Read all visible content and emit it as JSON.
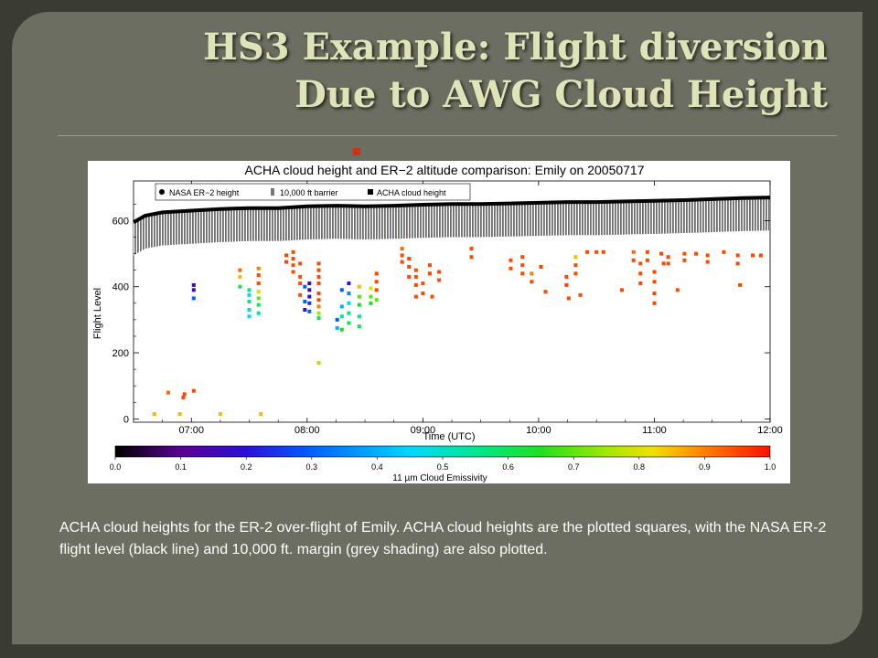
{
  "slide": {
    "title_line1": "HS3 Example: Flight diversion",
    "title_line2": "Due to AWG Cloud Height",
    "caption": "ACHA cloud heights for the ER-2 over-flight of Emily. ACHA cloud heights are the plotted squares, with the NASA ER-2 flight level (black line) and 10,000 ft. margin (grey shading) are also plotted."
  },
  "colors": {
    "background": "#3a3c33",
    "slide": "#6b6e60",
    "title": "#dfe3b8",
    "bullet": "#d23010"
  },
  "chart_data": {
    "type": "scatter",
    "title": "ACHA cloud height and ER−2 altitude comparison: Emily on 20050717",
    "xlabel": "Time (UTC)",
    "ylabel": "Flight Level",
    "xlim": [
      6.5,
      12.0
    ],
    "ylim": [
      -10,
      720
    ],
    "x_ticks": [
      7,
      8,
      9,
      10,
      11,
      12
    ],
    "x_tick_labels": [
      "07:00",
      "08:00",
      "09:00",
      "10:00",
      "11:00",
      "12:00"
    ],
    "y_ticks": [
      0,
      200,
      400,
      600
    ],
    "y_tick_labels": [
      "0",
      "200",
      "400",
      "600"
    ],
    "legend": {
      "placement": "top-left",
      "entries": [
        "NASA ER−2 height",
        "10,000 ft barrier",
        "ACHA cloud height"
      ]
    },
    "colorbar": {
      "label": "11 µm Cloud Emissivity",
      "ticks": [
        0.0,
        0.1,
        0.2,
        0.3,
        0.4,
        0.5,
        0.6,
        0.7,
        0.8,
        0.9,
        1.0
      ],
      "tick_labels": [
        "0.0",
        "0.1",
        "0.2",
        "0.3",
        "0.4",
        "0.5",
        "0.6",
        "0.7",
        "0.8",
        "0.9",
        "1.0"
      ]
    },
    "er2_height": {
      "name": "NASA ER−2 height",
      "x": [
        6.5,
        6.6,
        6.75,
        7.0,
        7.25,
        7.5,
        7.75,
        8.0,
        8.25,
        8.5,
        8.75,
        9.0,
        9.25,
        9.5,
        9.75,
        10.0,
        10.25,
        10.5,
        10.75,
        11.0,
        11.25,
        11.5,
        11.75,
        12.0
      ],
      "y": [
        595,
        615,
        625,
        630,
        635,
        638,
        638,
        643,
        645,
        643,
        645,
        648,
        650,
        650,
        652,
        654,
        656,
        656,
        658,
        660,
        662,
        665,
        668,
        670
      ]
    },
    "barrier_offset": 100,
    "acha": {
      "name": "ACHA cloud height",
      "points": [
        [
          6.68,
          15,
          0.85
        ],
        [
          6.8,
          80,
          0.92
        ],
        [
          6.9,
          15,
          0.85
        ],
        [
          6.93,
          65,
          0.95
        ],
        [
          6.94,
          75,
          0.95
        ],
        [
          7.02,
          85,
          0.95
        ],
        [
          7.02,
          390,
          0.15
        ],
        [
          7.02,
          365,
          0.3
        ],
        [
          7.02,
          405,
          0.15
        ],
        [
          7.25,
          15,
          0.85
        ],
        [
          7.42,
          450,
          0.92
        ],
        [
          7.42,
          430,
          0.85
        ],
        [
          7.42,
          400,
          0.6
        ],
        [
          7.5,
          390,
          0.55
        ],
        [
          7.5,
          375,
          0.45
        ],
        [
          7.5,
          355,
          0.55
        ],
        [
          7.5,
          330,
          0.5
        ],
        [
          7.5,
          310,
          0.45
        ],
        [
          7.58,
          455,
          0.9
        ],
        [
          7.58,
          435,
          0.95
        ],
        [
          7.58,
          410,
          0.95
        ],
        [
          7.58,
          385,
          0.8
        ],
        [
          7.58,
          365,
          0.7
        ],
        [
          7.58,
          345,
          0.6
        ],
        [
          7.58,
          320,
          0.55
        ],
        [
          7.6,
          15,
          0.85
        ],
        [
          7.82,
          495,
          0.95
        ],
        [
          7.82,
          475,
          0.95
        ],
        [
          7.88,
          505,
          0.95
        ],
        [
          7.88,
          485,
          0.95
        ],
        [
          7.88,
          465,
          0.95
        ],
        [
          7.88,
          445,
          0.95
        ],
        [
          7.94,
          470,
          0.95
        ],
        [
          7.94,
          430,
          0.95
        ],
        [
          7.94,
          410,
          0.95
        ],
        [
          7.94,
          375,
          0.95
        ],
        [
          7.98,
          400,
          0.3
        ],
        [
          7.98,
          355,
          0.3
        ],
        [
          7.98,
          330,
          0.2
        ],
        [
          8.02,
          410,
          0.15
        ],
        [
          8.02,
          390,
          0.15
        ],
        [
          8.02,
          370,
          0.2
        ],
        [
          8.02,
          350,
          0.25
        ],
        [
          8.02,
          325,
          0.3
        ],
        [
          8.1,
          470,
          0.95
        ],
        [
          8.1,
          450,
          0.95
        ],
        [
          8.1,
          430,
          0.95
        ],
        [
          8.1,
          410,
          0.95
        ],
        [
          8.1,
          380,
          0.95
        ],
        [
          8.1,
          360,
          0.95
        ],
        [
          8.1,
          340,
          0.9
        ],
        [
          8.1,
          320,
          0.75
        ],
        [
          8.1,
          305,
          0.6
        ],
        [
          8.1,
          170,
          0.75
        ],
        [
          8.26,
          300,
          0.3
        ],
        [
          8.26,
          275,
          0.4
        ],
        [
          8.3,
          390,
          0.3
        ],
        [
          8.3,
          340,
          0.4
        ],
        [
          8.3,
          310,
          0.55
        ],
        [
          8.3,
          270,
          0.65
        ],
        [
          8.36,
          410,
          0.2
        ],
        [
          8.36,
          380,
          0.35
        ],
        [
          8.36,
          350,
          0.45
        ],
        [
          8.36,
          320,
          0.55
        ],
        [
          8.36,
          290,
          0.6
        ],
        [
          8.45,
          400,
          0.85
        ],
        [
          8.45,
          370,
          0.7
        ],
        [
          8.45,
          345,
          0.65
        ],
        [
          8.45,
          310,
          0.55
        ],
        [
          8.45,
          280,
          0.6
        ],
        [
          8.55,
          395,
          0.8
        ],
        [
          8.55,
          370,
          0.7
        ],
        [
          8.55,
          350,
          0.65
        ],
        [
          8.6,
          440,
          0.95
        ],
        [
          8.6,
          415,
          0.95
        ],
        [
          8.6,
          390,
          0.95
        ],
        [
          8.6,
          360,
          0.7
        ],
        [
          8.82,
          515,
          0.92
        ],
        [
          8.82,
          495,
          0.95
        ],
        [
          8.82,
          475,
          0.95
        ],
        [
          8.88,
          485,
          0.95
        ],
        [
          8.88,
          460,
          0.95
        ],
        [
          8.88,
          430,
          0.95
        ],
        [
          8.94,
          450,
          0.95
        ],
        [
          8.94,
          430,
          0.95
        ],
        [
          8.94,
          405,
          0.95
        ],
        [
          8.94,
          370,
          0.95
        ],
        [
          9.0,
          410,
          0.95
        ],
        [
          9.0,
          380,
          0.95
        ],
        [
          9.06,
          465,
          0.95
        ],
        [
          9.06,
          440,
          0.95
        ],
        [
          9.08,
          370,
          0.95
        ],
        [
          9.14,
          445,
          0.95
        ],
        [
          9.14,
          420,
          0.95
        ],
        [
          9.42,
          515,
          0.95
        ],
        [
          9.42,
          490,
          0.95
        ],
        [
          9.76,
          480,
          0.95
        ],
        [
          9.76,
          455,
          0.95
        ],
        [
          9.86,
          490,
          0.95
        ],
        [
          9.86,
          465,
          0.95
        ],
        [
          9.86,
          440,
          0.95
        ],
        [
          9.94,
          440,
          0.9
        ],
        [
          9.94,
          415,
          0.95
        ],
        [
          10.02,
          460,
          0.95
        ],
        [
          10.06,
          385,
          0.95
        ],
        [
          10.24,
          430,
          0.95
        ],
        [
          10.24,
          405,
          0.95
        ],
        [
          10.26,
          365,
          0.95
        ],
        [
          10.32,
          490,
          0.85
        ],
        [
          10.32,
          465,
          0.95
        ],
        [
          10.32,
          440,
          0.95
        ],
        [
          10.36,
          375,
          0.95
        ],
        [
          10.42,
          505,
          0.95
        ],
        [
          10.5,
          505,
          0.95
        ],
        [
          10.56,
          505,
          0.95
        ],
        [
          10.72,
          390,
          0.95
        ],
        [
          10.82,
          505,
          0.92
        ],
        [
          10.82,
          480,
          0.95
        ],
        [
          10.88,
          470,
          0.95
        ],
        [
          10.88,
          440,
          0.95
        ],
        [
          10.88,
          410,
          0.95
        ],
        [
          10.94,
          505,
          0.95
        ],
        [
          10.94,
          480,
          0.95
        ],
        [
          11.0,
          445,
          0.95
        ],
        [
          11.0,
          415,
          0.95
        ],
        [
          11.0,
          380,
          0.95
        ],
        [
          11.0,
          350,
          0.95
        ],
        [
          11.06,
          500,
          0.95
        ],
        [
          11.08,
          470,
          0.95
        ],
        [
          11.12,
          490,
          0.95
        ],
        [
          11.12,
          470,
          0.95
        ],
        [
          11.2,
          390,
          0.95
        ],
        [
          11.26,
          500,
          0.95
        ],
        [
          11.26,
          480,
          0.95
        ],
        [
          11.36,
          500,
          0.95
        ],
        [
          11.46,
          495,
          0.95
        ],
        [
          11.46,
          475,
          0.95
        ],
        [
          11.6,
          505,
          0.95
        ],
        [
          11.72,
          495,
          0.95
        ],
        [
          11.72,
          470,
          0.95
        ],
        [
          11.74,
          405,
          0.95
        ],
        [
          11.85,
          495,
          0.95
        ],
        [
          11.92,
          495,
          0.95
        ]
      ]
    }
  }
}
